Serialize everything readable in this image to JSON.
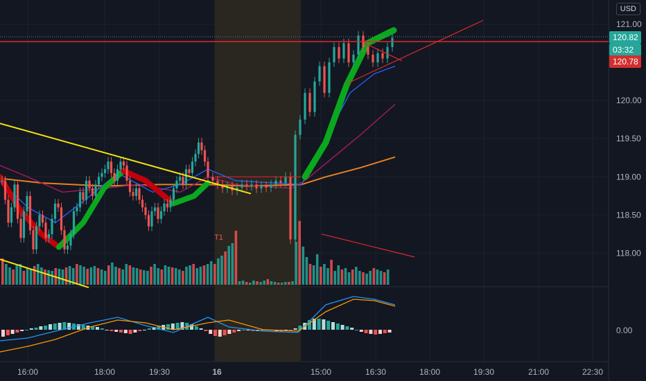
{
  "currency": "USD",
  "colors": {
    "background": "#131722",
    "grid": "#1e222d",
    "up": "#26a69a",
    "down": "#ef5350",
    "ribbon_up": "#0aa81e",
    "ribbon_down": "#c2000b",
    "ma_slow": "#e8811f",
    "ma_mid": "#9c1a5a",
    "ma_fast": "#2962ff",
    "trendline_yellow": "#f5e50d",
    "trendline_red": "#e0282e",
    "session_shade": "#2a2620",
    "macd": "#2196f3",
    "signal": "#ff9800"
  },
  "price_tags": {
    "last": "120.82",
    "countdown": "03:32",
    "bid": "120.78"
  },
  "annotation": "T1",
  "chart_data": [
    {
      "type": "candlestick",
      "title": "",
      "x_ticks": [
        "16:00",
        "18:00",
        "19:30",
        "16",
        "15:00",
        "16:30",
        "18:00",
        "19:30",
        "21:00",
        "22:30"
      ],
      "y_ticks": [
        "118.00",
        "118.50",
        "119.00",
        "119.50",
        "120.00",
        "121.00"
      ],
      "ylim": [
        117.6,
        121.25
      ],
      "grid": true,
      "candles_close": [
        118.95,
        118.7,
        118.4,
        118.6,
        118.9,
        118.45,
        118.2,
        118.55,
        118.75,
        118.3,
        118.05,
        118.35,
        118.5,
        118.4,
        118.2,
        118.25,
        118.45,
        118.65,
        118.6,
        118.3,
        118.05,
        118.1,
        118.25,
        118.55,
        118.6,
        118.8,
        118.7,
        118.95,
        118.85,
        118.75,
        118.9,
        119.0,
        119.05,
        119.1,
        119.2,
        119.05,
        118.95,
        119.1,
        119.2,
        119.15,
        118.95,
        118.8,
        118.75,
        118.85,
        118.7,
        118.6,
        118.5,
        118.35,
        118.55,
        118.6,
        118.45,
        118.55,
        118.65,
        118.6,
        118.7,
        118.85,
        118.95,
        119.0,
        118.9,
        119.1,
        119.05,
        119.2,
        119.3,
        119.45,
        119.35,
        119.2
      ],
      "candles_close_2": [
        119.0,
        118.95,
        118.9,
        118.85,
        118.88,
        118.82,
        118.86,
        118.9,
        118.88,
        118.9,
        118.85,
        118.88,
        118.86,
        118.9,
        118.95,
        118.92,
        119.0,
        118.18,
        119.55,
        119.75,
        120.1,
        119.85,
        120.25,
        120.45,
        120.1,
        120.5,
        120.7,
        120.55,
        120.75,
        120.5,
        120.6,
        120.85,
        120.7,
        120.6,
        120.5,
        120.62,
        120.55,
        120.7,
        120.82
      ],
      "volume_bars": [
        38,
        30,
        25,
        22,
        28,
        30,
        20,
        24,
        22,
        27,
        30,
        25,
        22,
        21,
        20,
        24,
        23,
        22,
        25,
        27,
        24,
        30,
        28,
        26,
        23,
        25,
        27,
        24,
        22,
        20,
        28,
        32,
        26,
        24,
        22,
        30,
        28,
        25,
        24,
        22,
        21,
        20,
        26,
        30,
        24,
        22,
        28,
        26,
        25,
        24,
        22,
        20,
        26,
        28,
        30,
        24,
        26,
        28,
        30,
        34,
        30,
        38,
        42,
        48,
        56,
        60,
        78,
        5,
        6,
        4,
        3,
        6,
        5,
        4,
        6,
        8,
        5,
        4,
        3,
        3,
        4,
        4,
        5,
        62,
        92,
        55,
        40,
        30,
        28,
        44,
        26,
        30,
        24,
        36,
        20,
        28,
        22,
        24,
        18,
        22,
        26,
        20,
        18,
        16,
        20,
        24,
        22,
        20,
        18,
        22
      ],
      "macd_histogram": [
        -10,
        -8,
        -6,
        -4,
        -2,
        0,
        2,
        3,
        5,
        6,
        8,
        9,
        10,
        11,
        10,
        9,
        8,
        7,
        6,
        5,
        4,
        2,
        0,
        -2,
        -3,
        -4,
        -5,
        -6,
        -4,
        -2,
        0,
        2,
        4,
        6,
        7,
        8,
        9,
        10,
        11,
        10,
        8,
        5,
        2,
        -2,
        -6,
        -9,
        -10,
        -8,
        -6,
        -4,
        -2,
        0,
        -1,
        -2,
        -2,
        -1,
        0,
        -1,
        -2,
        -3,
        -2,
        -1,
        2,
        6,
        10,
        14,
        16,
        16,
        15,
        13,
        11,
        9,
        7,
        5,
        3,
        0,
        -3,
        -5,
        -6,
        -7,
        -6,
        -5,
        -4
      ]
    }
  ]
}
